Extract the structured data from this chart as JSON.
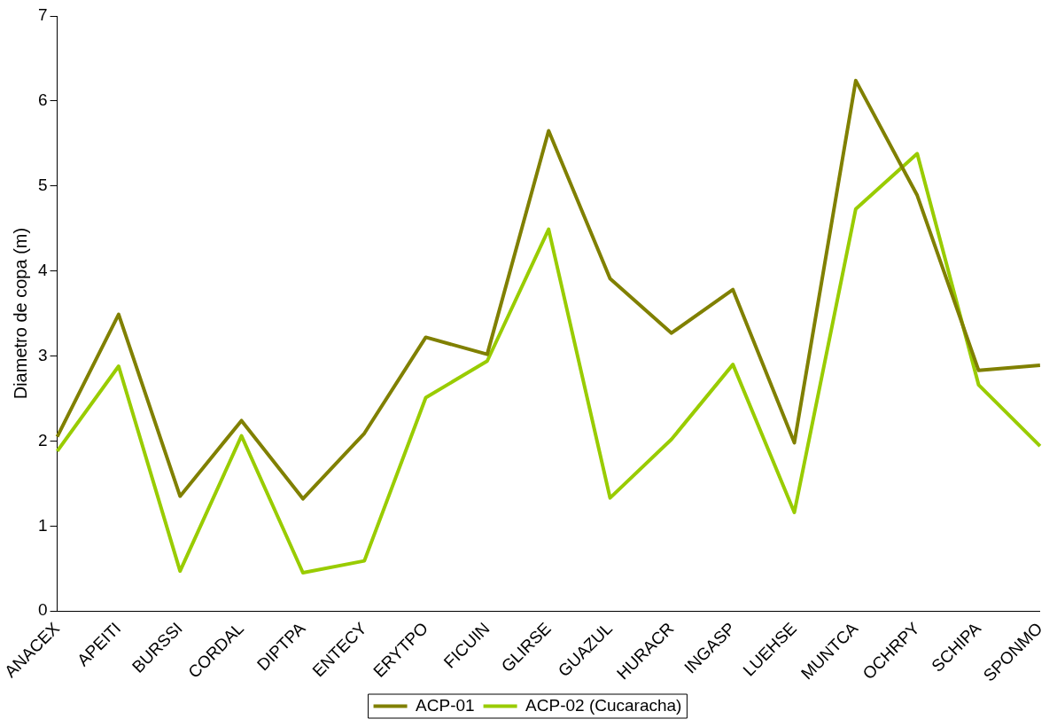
{
  "chart_data": {
    "type": "line",
    "ylabel": "Diametro de copa (m)",
    "categories": [
      "ANACEX",
      "APEITI",
      "BURSSI",
      "CORDAL",
      "DIPTPA",
      "ENTECY",
      "ERYTPO",
      "FICUIN",
      "GLIRSE",
      "GUAZUL",
      "HURACR",
      "INGASP",
      "LUEHSE",
      "MUNTCA",
      "OCHRPY",
      "SCHIPA",
      "SPONMO"
    ],
    "series": [
      {
        "name": "ACP-01",
        "color": "#808000",
        "values": [
          2.05,
          3.49,
          1.35,
          2.24,
          1.32,
          2.09,
          3.22,
          3.02,
          5.65,
          3.91,
          3.27,
          3.78,
          1.98,
          6.24,
          4.89,
          2.83,
          2.89
        ]
      },
      {
        "name": "ACP-02 (Cucaracha)",
        "color": "#99cc00",
        "values": [
          1.88,
          2.88,
          0.47,
          2.06,
          0.45,
          0.59,
          2.51,
          2.94,
          4.49,
          1.33,
          2.02,
          2.9,
          1.16,
          4.73,
          5.38,
          2.66,
          1.94
        ]
      }
    ],
    "ylim": [
      0,
      7
    ],
    "yticks": [
      0,
      1,
      2,
      3,
      4,
      5,
      6,
      7
    ],
    "grid": false,
    "legend": "bottom",
    "marker": "none",
    "line_style": "solid"
  }
}
